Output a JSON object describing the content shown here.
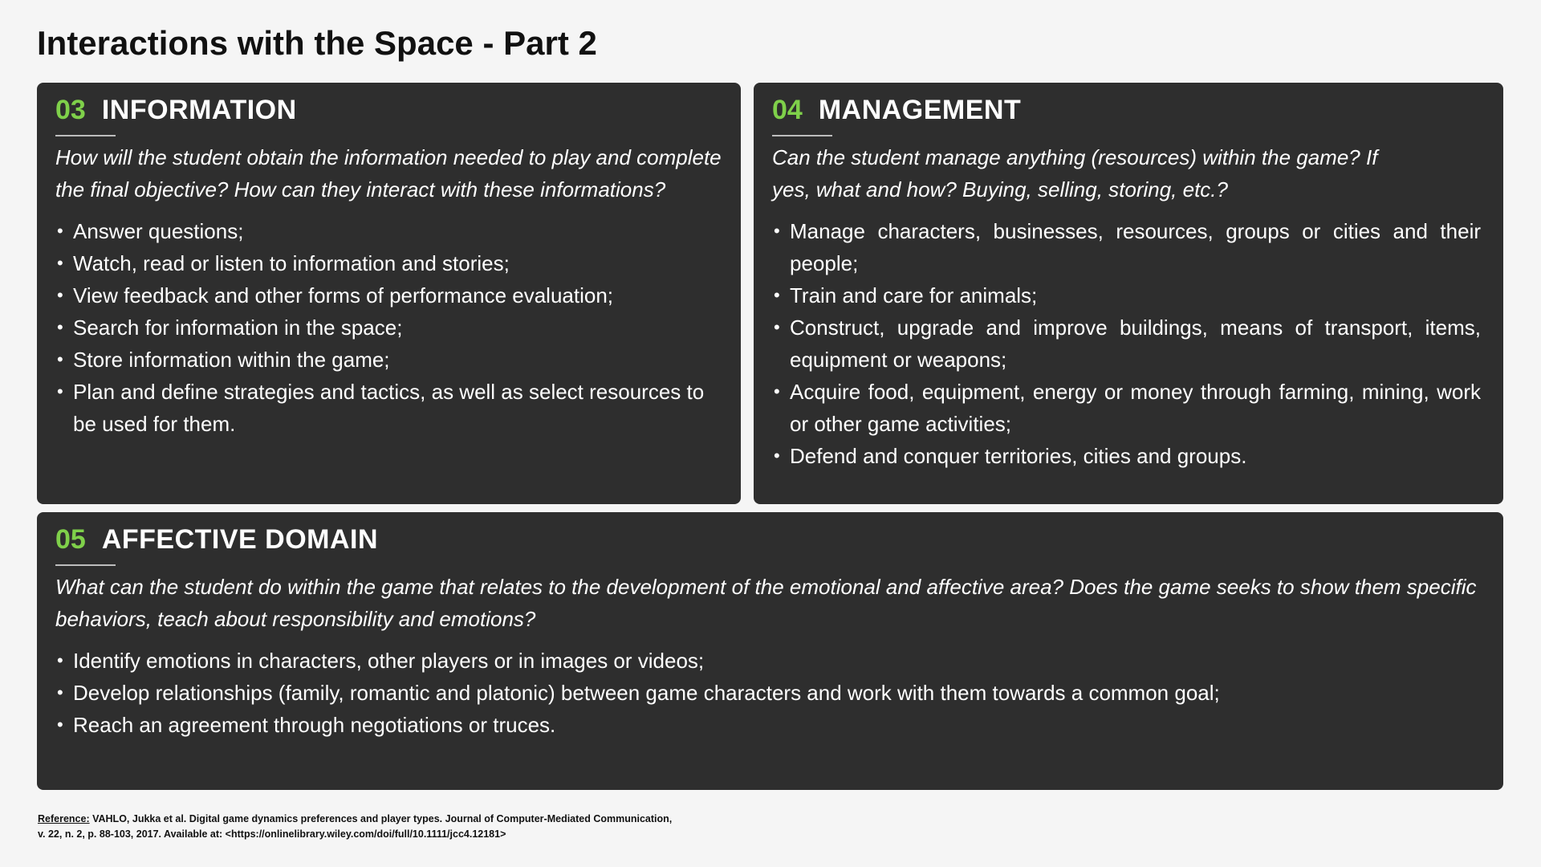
{
  "page": {
    "title": "Interactions with the Space - Part 2"
  },
  "panels": [
    {
      "number": "03",
      "heading": "INFORMATION",
      "question": "How will the student obtain the information needed to play and complete the final objective? How can they interact with these informations?",
      "items": [
        "Answer questions;",
        "Watch, read or listen to information and stories;",
        "View feedback and other forms of performance evaluation;",
        "Search for information in the space;",
        "Store information within the game;",
        "Plan and define strategies and tactics, as well as select resources to be used for them."
      ]
    },
    {
      "number": "04",
      "heading": "MANAGEMENT",
      "question": "Can the student manage anything (resources) within the game? If yes, what and how? Buying, selling, storing, etc.?",
      "items": [
        "Manage characters, businesses, resources, groups or cities and their people;",
        "Train and care for animals;",
        "Construct, upgrade and improve buildings, means of transport, items, equipment or weapons;",
        "Acquire food, equipment, energy or money through farming, mining, work or other game activities;",
        "Defend and conquer territories, cities and groups."
      ]
    },
    {
      "number": "05",
      "heading": "AFFECTIVE DOMAIN",
      "question": "What can the student do within the game that relates to the development of the emotional and affective area? Does the game seeks to show them specific behaviors, teach about responsibility and emotions?",
      "items": [
        "Identify emotions in characters, other players or in images or videos;",
        "Develop relationships (family, romantic and platonic) between game characters and work with them towards a common goal;",
        "Reach an agreement through negotiations or truces."
      ]
    }
  ],
  "reference": {
    "label": "Reference:",
    "text": " VAHLO, Jukka et al. Digital game dynamics preferences and player types. Journal of Computer-Mediated Communication, v. 22, n. 2, p. 88-103, 2017. Available at: <https://onlinelibrary.wiley.com/doi/full/10.1111/jcc4.12181>"
  },
  "colors": {
    "accent": "#7fd04a",
    "panel_bg": "#2e2e2e",
    "page_bg": "#f5f5f5"
  }
}
